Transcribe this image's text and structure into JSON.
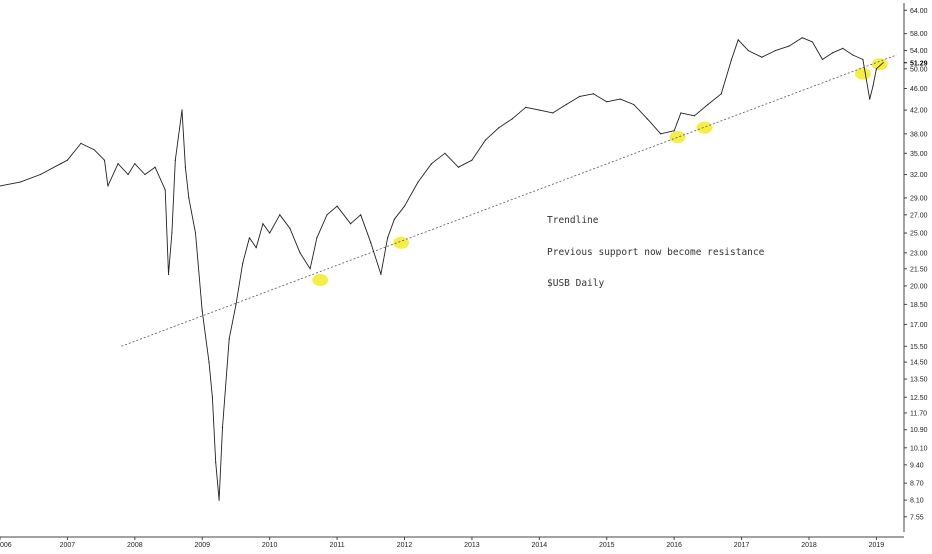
{
  "chart_data": {
    "type": "line",
    "subtype": "daily price with trendline annotation",
    "ticker": "$USB",
    "x_axis": {
      "tick_labels": [
        "006",
        "2007",
        "2008",
        "2009",
        "2010",
        "2011",
        "2012",
        "2013",
        "2014",
        "2015",
        "2016",
        "2017",
        "2018",
        "2019"
      ],
      "range": [
        2006.0,
        2019.35
      ]
    },
    "y_axis": {
      "scale": "log",
      "side": "right",
      "range": [
        7.2,
        66.0
      ],
      "tick_labels": [
        "64.00",
        "58.00",
        "54.00",
        "50.00",
        "46.00",
        "42.00",
        "38.00",
        "35.00",
        "32.00",
        "29.00",
        "27.00",
        "25.00",
        "23.00",
        "21.50",
        "20.00",
        "18.50",
        "17.00",
        "15.50",
        "14.50",
        "13.50",
        "12.50",
        "11.70",
        "10.90",
        "10.10",
        "9.40",
        "8.70",
        "8.10",
        "7.55"
      ]
    },
    "last_price": "51.29",
    "series": [
      {
        "x": [
          2006.0,
          2006.3,
          2006.6,
          2006.9,
          2007.0,
          2007.2,
          2007.4,
          2007.55,
          2007.6,
          2007.75,
          2007.9,
          2008.0,
          2008.15,
          2008.3,
          2008.45,
          2008.5,
          2008.55,
          2008.6,
          2008.7,
          2008.75,
          2008.8,
          2008.9,
          2009.0,
          2009.1,
          2009.15,
          2009.2,
          2009.25,
          2009.3,
          2009.4,
          2009.5,
          2009.6,
          2009.7,
          2009.8,
          2009.9,
          2010.0,
          2010.15,
          2010.3,
          2010.45,
          2010.6,
          2010.7,
          2010.85,
          2011.0,
          2011.2,
          2011.35,
          2011.5,
          2011.65,
          2011.75,
          2011.85,
          2012.0,
          2012.2,
          2012.4,
          2012.6,
          2012.8,
          2013.0,
          2013.2,
          2013.4,
          2013.6,
          2013.8,
          2014.0,
          2014.2,
          2014.4,
          2014.6,
          2014.8,
          2015.0,
          2015.2,
          2015.4,
          2015.6,
          2015.8,
          2016.0,
          2016.1,
          2016.3,
          2016.5,
          2016.7,
          2016.85,
          2016.95,
          2017.1,
          2017.3,
          2017.5,
          2017.7,
          2017.9,
          2018.05,
          2018.2,
          2018.35,
          2018.5,
          2018.65,
          2018.8,
          2018.9,
          2018.95,
          2019.0,
          2019.1
        ],
        "y": [
          30.5,
          31.0,
          32.0,
          33.5,
          34.0,
          36.5,
          35.5,
          34.0,
          30.5,
          33.5,
          32.0,
          33.5,
          32.0,
          33.0,
          30.0,
          21.0,
          25.0,
          34.0,
          42.0,
          33.0,
          29.0,
          25.0,
          18.0,
          14.5,
          12.5,
          9.5,
          8.1,
          11.0,
          16.0,
          18.5,
          22.0,
          24.5,
          23.5,
          26.0,
          25.0,
          27.0,
          25.5,
          23.0,
          21.5,
          24.5,
          27.0,
          28.0,
          26.0,
          27.0,
          24.0,
          21.0,
          24.5,
          26.5,
          28.0,
          31.0,
          33.5,
          35.0,
          33.0,
          34.0,
          37.0,
          39.0,
          40.5,
          42.5,
          42.0,
          41.5,
          43.0,
          44.5,
          45.0,
          43.5,
          44.0,
          43.0,
          40.5,
          38.0,
          38.5,
          41.5,
          41.0,
          43.0,
          45.0,
          52.0,
          56.5,
          54.0,
          52.5,
          54.0,
          55.0,
          57.0,
          56.0,
          52.0,
          53.5,
          54.5,
          53.0,
          52.0,
          44.0,
          46.5,
          50.0,
          51.3
        ]
      }
    ],
    "trendline": {
      "x": [
        2007.8,
        2019.3
      ],
      "y": [
        15.5,
        53.0
      ]
    },
    "highlights": [
      {
        "x": 2010.75,
        "y": 20.5
      },
      {
        "x": 2011.95,
        "y": 24.0
      },
      {
        "x": 2016.05,
        "y": 37.5
      },
      {
        "x": 2016.45,
        "y": 39.0
      },
      {
        "x": 2018.8,
        "y": 49.0
      },
      {
        "x": 2019.05,
        "y": 51.0
      }
    ],
    "annotation": [
      "Trendline",
      "Previous support now become resistance",
      "$USB Daily"
    ],
    "colors": {
      "price_line": "#222222",
      "trendline": "#555555",
      "highlight": "#f5ea2a",
      "axis": "#444444"
    },
    "grid": false
  }
}
